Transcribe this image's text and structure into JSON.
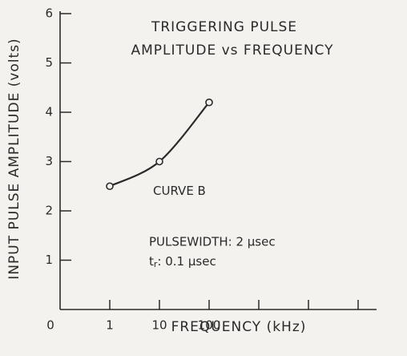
{
  "chart_data": {
    "type": "line",
    "title": [
      "TRIGGERING PULSE",
      "AMPLITUDE vs FREQUENCY"
    ],
    "x_label": "FREQUENCY (kHz)",
    "y_label": "INPUT PULSE AMPLITUDE (volts)",
    "categories": [
      "0",
      "1",
      "10",
      "100",
      null,
      null,
      null
    ],
    "series": [
      {
        "name": "CURVE B",
        "color": "#2a2a2a",
        "values": [
          null,
          2.5,
          3.0,
          4.2,
          null,
          null,
          null
        ]
      }
    ],
    "ylim": [
      0,
      6
    ],
    "yticks": [
      1,
      2,
      3,
      4,
      5,
      6
    ],
    "annotations": {
      "pulsewidth": "PULSEWIDTH:  2 µsec",
      "rise": {
        "symbol": "t",
        "subscript": "r",
        "text": ":  0.1 µsec"
      }
    }
  }
}
